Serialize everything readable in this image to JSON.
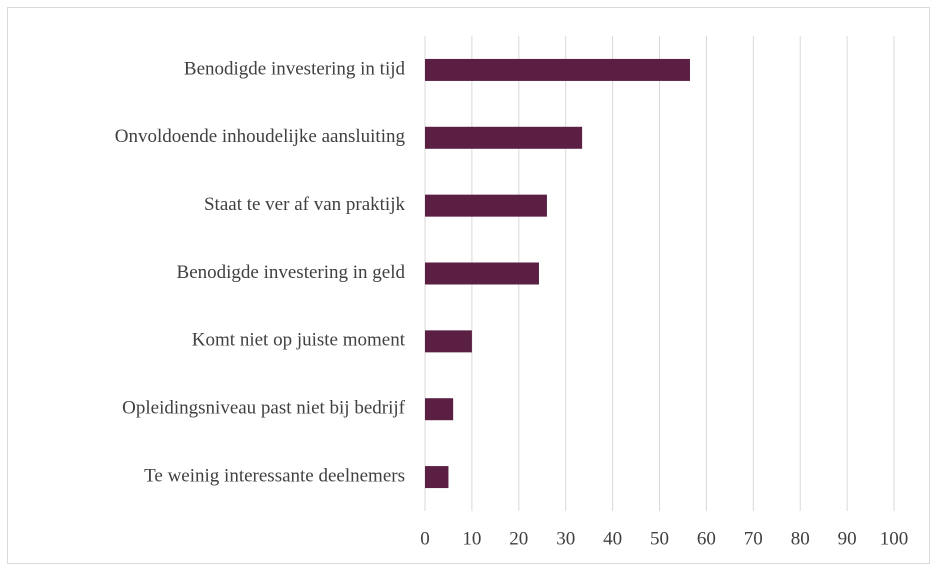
{
  "chart_data": {
    "type": "bar",
    "orientation": "horizontal",
    "categories": [
      "Benodigde investering in tijd",
      "Onvoldoende inhoudelijke aansluiting",
      "Staat te ver af van praktijk",
      "Benodigde investering in geld",
      "Komt niet op juiste moment",
      "Opleidingsniveau past niet bij bedrijf",
      "Te weinig interessante deelnemers"
    ],
    "values": [
      56.5,
      33.5,
      26,
      24.3,
      10,
      6,
      5
    ],
    "color": "#5a1f42",
    "xlim": [
      0,
      100
    ],
    "xticks": [
      0,
      10,
      20,
      30,
      40,
      50,
      60,
      70,
      80,
      90,
      100
    ],
    "grid": true
  }
}
